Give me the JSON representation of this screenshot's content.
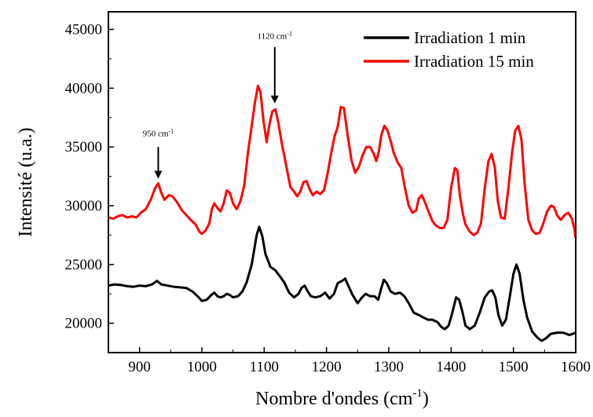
{
  "chart_data": {
    "type": "line",
    "xlabel": "Nombre d'ondes (cm",
    "xlabel_sup": "-1",
    "xlabel_close": ")",
    "ylabel": "Intensité (u.a.)",
    "xlim": [
      850,
      1600
    ],
    "ylim": [
      17500,
      46500
    ],
    "x_ticks": [
      900,
      1000,
      1100,
      1200,
      1300,
      1400,
      1500,
      1600
    ],
    "y_ticks": [
      20000,
      25000,
      30000,
      35000,
      40000,
      45000
    ],
    "x_tick_labels": [
      "900",
      "1000",
      "1100",
      "1200",
      "1300",
      "1400",
      "1500",
      "1600"
    ],
    "y_tick_labels": [
      "20000",
      "25000",
      "30000",
      "35000",
      "40000",
      "45000"
    ],
    "grid": false,
    "legend_position": "top-right",
    "series": [
      {
        "name": "Irradiation 1 min",
        "color": "#000000",
        "points": [
          [
            850,
            23200
          ],
          [
            860,
            23300
          ],
          [
            870,
            23250
          ],
          [
            880,
            23150
          ],
          [
            890,
            23100
          ],
          [
            900,
            23200
          ],
          [
            910,
            23150
          ],
          [
            920,
            23300
          ],
          [
            928,
            23600
          ],
          [
            935,
            23300
          ],
          [
            945,
            23200
          ],
          [
            955,
            23100
          ],
          [
            965,
            23050
          ],
          [
            975,
            23000
          ],
          [
            985,
            22700
          ],
          [
            995,
            22200
          ],
          [
            1000,
            21900
          ],
          [
            1008,
            22000
          ],
          [
            1015,
            22400
          ],
          [
            1020,
            22600
          ],
          [
            1025,
            22300
          ],
          [
            1030,
            22200
          ],
          [
            1035,
            22300
          ],
          [
            1040,
            22500
          ],
          [
            1045,
            22400
          ],
          [
            1050,
            22200
          ],
          [
            1058,
            22300
          ],
          [
            1065,
            22700
          ],
          [
            1072,
            23500
          ],
          [
            1080,
            25000
          ],
          [
            1088,
            27500
          ],
          [
            1092,
            28200
          ],
          [
            1097,
            27400
          ],
          [
            1102,
            25900
          ],
          [
            1110,
            24800
          ],
          [
            1118,
            24500
          ],
          [
            1125,
            24000
          ],
          [
            1132,
            23500
          ],
          [
            1140,
            22600
          ],
          [
            1148,
            22200
          ],
          [
            1155,
            22500
          ],
          [
            1160,
            23000
          ],
          [
            1165,
            23200
          ],
          [
            1170,
            22700
          ],
          [
            1175,
            22300
          ],
          [
            1182,
            22200
          ],
          [
            1190,
            22300
          ],
          [
            1198,
            22600
          ],
          [
            1205,
            22100
          ],
          [
            1212,
            22500
          ],
          [
            1218,
            23400
          ],
          [
            1225,
            23600
          ],
          [
            1230,
            23800
          ],
          [
            1235,
            23200
          ],
          [
            1242,
            22400
          ],
          [
            1250,
            21700
          ],
          [
            1257,
            22200
          ],
          [
            1263,
            22500
          ],
          [
            1270,
            22300
          ],
          [
            1277,
            22300
          ],
          [
            1283,
            22000
          ],
          [
            1287,
            22800
          ],
          [
            1292,
            23700
          ],
          [
            1297,
            23400
          ],
          [
            1303,
            22700
          ],
          [
            1310,
            22500
          ],
          [
            1318,
            22600
          ],
          [
            1325,
            22300
          ],
          [
            1332,
            21700
          ],
          [
            1340,
            20900
          ],
          [
            1348,
            20700
          ],
          [
            1355,
            20500
          ],
          [
            1363,
            20300
          ],
          [
            1370,
            20300
          ],
          [
            1378,
            20100
          ],
          [
            1384,
            19700
          ],
          [
            1390,
            19500
          ],
          [
            1396,
            19800
          ],
          [
            1402,
            20900
          ],
          [
            1408,
            22200
          ],
          [
            1413,
            22000
          ],
          [
            1418,
            21000
          ],
          [
            1423,
            19800
          ],
          [
            1430,
            19500
          ],
          [
            1438,
            19800
          ],
          [
            1446,
            20900
          ],
          [
            1454,
            22200
          ],
          [
            1461,
            22700
          ],
          [
            1466,
            22800
          ],
          [
            1471,
            22200
          ],
          [
            1476,
            20700
          ],
          [
            1482,
            19800
          ],
          [
            1488,
            20300
          ],
          [
            1494,
            22200
          ],
          [
            1500,
            24200
          ],
          [
            1505,
            25000
          ],
          [
            1510,
            24200
          ],
          [
            1516,
            22000
          ],
          [
            1522,
            20500
          ],
          [
            1530,
            19300
          ],
          [
            1538,
            18800
          ],
          [
            1545,
            18500
          ],
          [
            1552,
            18700
          ],
          [
            1560,
            19100
          ],
          [
            1570,
            19200
          ],
          [
            1580,
            19200
          ],
          [
            1590,
            19000
          ],
          [
            1600,
            19200
          ]
        ]
      },
      {
        "name": "Irradiation 15 min",
        "color": "#ff0000",
        "points": [
          [
            850,
            29000
          ],
          [
            858,
            28900
          ],
          [
            865,
            29100
          ],
          [
            872,
            29200
          ],
          [
            880,
            29000
          ],
          [
            888,
            29100
          ],
          [
            895,
            29000
          ],
          [
            902,
            29400
          ],
          [
            910,
            29700
          ],
          [
            918,
            30500
          ],
          [
            925,
            31500
          ],
          [
            930,
            31900
          ],
          [
            935,
            31100
          ],
          [
            940,
            30500
          ],
          [
            947,
            30900
          ],
          [
            953,
            30800
          ],
          [
            960,
            30300
          ],
          [
            968,
            29600
          ],
          [
            975,
            29200
          ],
          [
            982,
            28800
          ],
          [
            990,
            28400
          ],
          [
            996,
            27800
          ],
          [
            1000,
            27600
          ],
          [
            1006,
            27900
          ],
          [
            1012,
            28500
          ],
          [
            1016,
            29700
          ],
          [
            1020,
            30200
          ],
          [
            1025,
            29800
          ],
          [
            1030,
            29500
          ],
          [
            1035,
            30200
          ],
          [
            1040,
            31300
          ],
          [
            1045,
            31100
          ],
          [
            1050,
            30200
          ],
          [
            1056,
            29700
          ],
          [
            1062,
            30400
          ],
          [
            1068,
            31700
          ],
          [
            1074,
            34500
          ],
          [
            1080,
            36800
          ],
          [
            1085,
            38700
          ],
          [
            1090,
            40200
          ],
          [
            1094,
            39700
          ],
          [
            1099,
            37200
          ],
          [
            1104,
            35400
          ],
          [
            1108,
            36800
          ],
          [
            1113,
            38000
          ],
          [
            1118,
            38200
          ],
          [
            1123,
            37000
          ],
          [
            1128,
            35400
          ],
          [
            1135,
            33500
          ],
          [
            1142,
            31600
          ],
          [
            1148,
            31200
          ],
          [
            1153,
            30800
          ],
          [
            1158,
            31200
          ],
          [
            1163,
            32000
          ],
          [
            1168,
            32100
          ],
          [
            1173,
            31400
          ],
          [
            1178,
            30900
          ],
          [
            1184,
            31200
          ],
          [
            1190,
            31000
          ],
          [
            1196,
            31300
          ],
          [
            1202,
            32800
          ],
          [
            1208,
            34600
          ],
          [
            1213,
            35900
          ],
          [
            1218,
            36700
          ],
          [
            1223,
            38400
          ],
          [
            1228,
            38300
          ],
          [
            1234,
            36000
          ],
          [
            1240,
            33900
          ],
          [
            1246,
            32800
          ],
          [
            1252,
            33300
          ],
          [
            1258,
            34300
          ],
          [
            1264,
            35000
          ],
          [
            1270,
            35000
          ],
          [
            1276,
            34400
          ],
          [
            1280,
            33800
          ],
          [
            1284,
            34600
          ],
          [
            1288,
            36000
          ],
          [
            1293,
            36800
          ],
          [
            1298,
            36400
          ],
          [
            1303,
            35500
          ],
          [
            1308,
            34500
          ],
          [
            1314,
            33700
          ],
          [
            1320,
            33200
          ],
          [
            1326,
            31500
          ],
          [
            1332,
            30000
          ],
          [
            1338,
            29400
          ],
          [
            1344,
            29600
          ],
          [
            1348,
            30600
          ],
          [
            1353,
            30900
          ],
          [
            1358,
            30300
          ],
          [
            1363,
            29600
          ],
          [
            1370,
            28700
          ],
          [
            1376,
            28300
          ],
          [
            1382,
            28100
          ],
          [
            1388,
            28100
          ],
          [
            1394,
            28800
          ],
          [
            1400,
            31500
          ],
          [
            1406,
            33200
          ],
          [
            1410,
            33000
          ],
          [
            1414,
            30900
          ],
          [
            1419,
            29300
          ],
          [
            1423,
            28400
          ],
          [
            1430,
            27800
          ],
          [
            1436,
            27500
          ],
          [
            1442,
            27700
          ],
          [
            1448,
            28500
          ],
          [
            1454,
            31500
          ],
          [
            1460,
            33800
          ],
          [
            1465,
            34400
          ],
          [
            1470,
            33300
          ],
          [
            1475,
            30400
          ],
          [
            1480,
            29000
          ],
          [
            1486,
            28900
          ],
          [
            1492,
            31500
          ],
          [
            1498,
            34600
          ],
          [
            1503,
            36400
          ],
          [
            1508,
            36800
          ],
          [
            1513,
            35600
          ],
          [
            1518,
            31900
          ],
          [
            1524,
            28800
          ],
          [
            1530,
            27900
          ],
          [
            1536,
            27600
          ],
          [
            1542,
            27700
          ],
          [
            1548,
            28500
          ],
          [
            1554,
            29500
          ],
          [
            1560,
            30000
          ],
          [
            1565,
            29900
          ],
          [
            1570,
            29200
          ],
          [
            1576,
            28800
          ],
          [
            1582,
            29200
          ],
          [
            1588,
            29400
          ],
          [
            1594,
            28900
          ],
          [
            1598,
            28000
          ],
          [
            1600,
            27200
          ]
        ]
      }
    ],
    "annotations": [
      {
        "label": "950 cm",
        "sup": "-1",
        "arrow_x": 930,
        "arrow_y_start": 35000,
        "arrow_y_end": 32300,
        "text_y": 35900
      },
      {
        "label": "1120 cm",
        "sup": "-1",
        "arrow_x": 1117,
        "arrow_y_start": 43500,
        "arrow_y_end": 38700,
        "text_y": 44200
      }
    ]
  }
}
